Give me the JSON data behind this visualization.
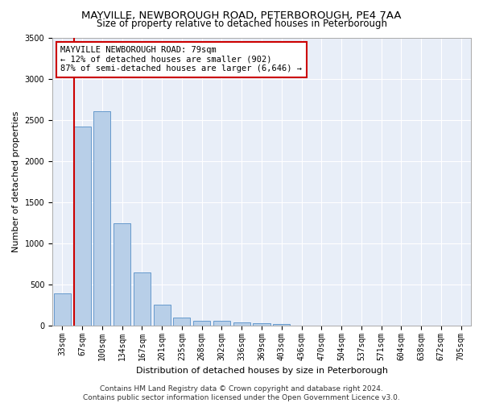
{
  "title": "MAYVILLE, NEWBOROUGH ROAD, PETERBOROUGH, PE4 7AA",
  "subtitle": "Size of property relative to detached houses in Peterborough",
  "xlabel": "Distribution of detached houses by size in Peterborough",
  "ylabel": "Number of detached properties",
  "categories": [
    "33sqm",
    "67sqm",
    "100sqm",
    "134sqm",
    "167sqm",
    "201sqm",
    "235sqm",
    "268sqm",
    "302sqm",
    "336sqm",
    "369sqm",
    "403sqm",
    "436sqm",
    "470sqm",
    "504sqm",
    "537sqm",
    "571sqm",
    "604sqm",
    "638sqm",
    "672sqm",
    "705sqm"
  ],
  "values": [
    390,
    2420,
    2600,
    1240,
    640,
    255,
    95,
    60,
    55,
    40,
    30,
    20,
    0,
    0,
    0,
    0,
    0,
    0,
    0,
    0,
    0
  ],
  "bar_color": "#b8cfe8",
  "bar_edge_color": "#6699cc",
  "fig_background_color": "#ffffff",
  "axes_background_color": "#e8eef8",
  "grid_color": "#ffffff",
  "vline_color": "#cc0000",
  "vline_x": 0.575,
  "annotation_text": "MAYVILLE NEWBOROUGH ROAD: 79sqm\n← 12% of detached houses are smaller (902)\n87% of semi-detached houses are larger (6,646) →",
  "annotation_box_facecolor": "#ffffff",
  "annotation_box_edgecolor": "#cc0000",
  "footer": "Contains HM Land Registry data © Crown copyright and database right 2024.\nContains public sector information licensed under the Open Government Licence v3.0.",
  "ylim": [
    0,
    3500
  ],
  "yticks": [
    0,
    500,
    1000,
    1500,
    2000,
    2500,
    3000,
    3500
  ],
  "title_fontsize": 9.5,
  "subtitle_fontsize": 8.5,
  "axis_label_fontsize": 8,
  "tick_fontsize": 7,
  "annotation_fontsize": 7.5,
  "footer_fontsize": 6.5
}
